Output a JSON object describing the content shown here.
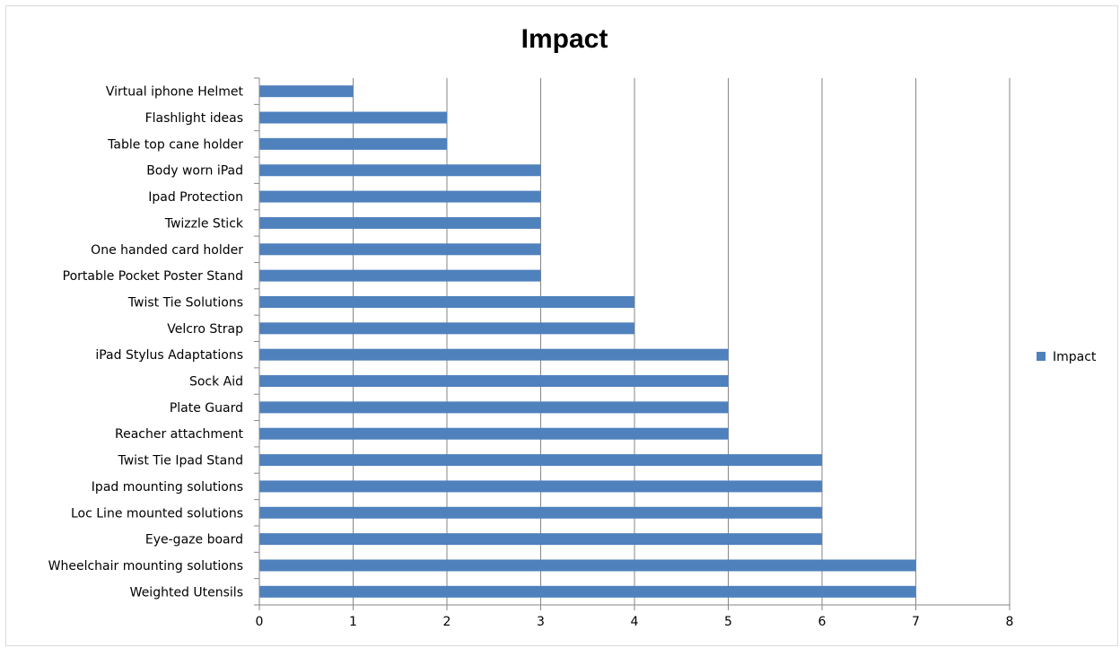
{
  "chart_data": {
    "type": "bar",
    "orientation": "horizontal",
    "title": "Impact",
    "xlabel": "",
    "ylabel": "",
    "xlim": [
      0,
      8
    ],
    "x_ticks": [
      "0",
      "1",
      "2",
      "3",
      "4",
      "5",
      "6",
      "7",
      "8"
    ],
    "grid": "vertical major gridlines",
    "legend_position": "right",
    "categories": [
      "Virtual iphone Helmet",
      "Flashlight ideas",
      "Table top cane holder",
      "Body worn iPad",
      "Ipad Protection",
      "Twizzle Stick",
      "One handed card holder",
      "Portable Pocket Poster Stand",
      "Twist Tie Solutions",
      "Velcro Strap",
      "iPad Stylus Adaptations",
      "Sock Aid",
      "Plate Guard",
      "Reacher attachment",
      "Twist Tie Ipad Stand",
      "Ipad mounting solutions",
      "Loc Line mounted solutions",
      "Eye-gaze board",
      "Wheelchair mounting solutions",
      "Weighted Utensils"
    ],
    "series": [
      {
        "name": "Impact",
        "color": "#4f81bd",
        "values": [
          1,
          2,
          2,
          3,
          3,
          3,
          3,
          3,
          4,
          4,
          5,
          5,
          5,
          5,
          6,
          6,
          6,
          6,
          7,
          7
        ]
      }
    ]
  }
}
